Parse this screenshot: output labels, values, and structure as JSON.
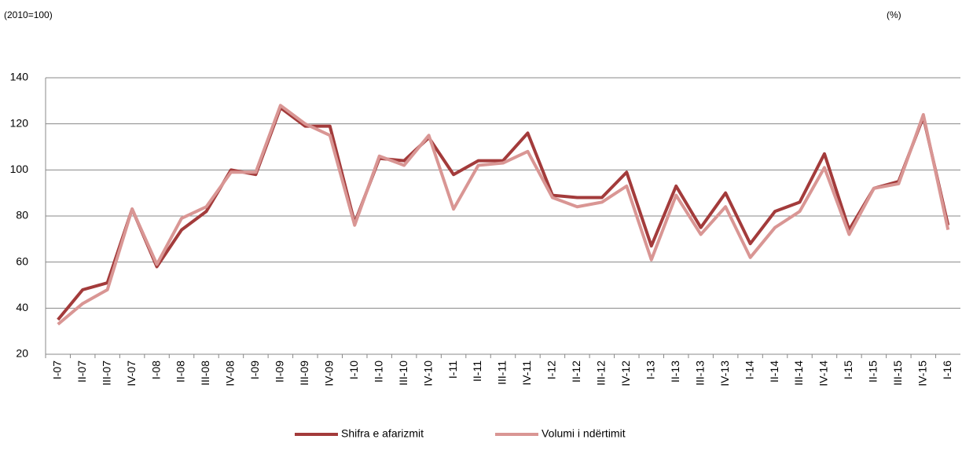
{
  "chart_data": {
    "type": "line",
    "left_label": "(2010=100)",
    "right_label": "(%)",
    "categories": [
      "I-07",
      "II-07",
      "III-07",
      "IV-07",
      "I-08",
      "II-08",
      "III-08",
      "IV-08",
      "I-09",
      "II-09",
      "III-09",
      "IV-09",
      "I-10",
      "II-10",
      "III-10",
      "IV-10",
      "I-11",
      "II-11",
      "III-11",
      "IV-11",
      "I-12",
      "II-12",
      "III-12",
      "IV-12",
      "I-13",
      "II-13",
      "III-13",
      "IV-13",
      "I-14",
      "II-14",
      "III-14",
      "IV-14",
      "I-15",
      "II-15",
      "III-15",
      "IV-15",
      "I-16"
    ],
    "series": [
      {
        "name": "Shifra e afarizmit",
        "color": "#a33b3b",
        "values": [
          35,
          48,
          51,
          83,
          58,
          74,
          82,
          100,
          98,
          127,
          119,
          119,
          77,
          105,
          104,
          114,
          98,
          104,
          104,
          116,
          89,
          88,
          88,
          99,
          67,
          93,
          75,
          90,
          68,
          82,
          86,
          107,
          74,
          92,
          95,
          123,
          76
        ]
      },
      {
        "name": "Volumi i ndërtimit",
        "color": "#d99694",
        "values": [
          33,
          42,
          48,
          83,
          59,
          79,
          84,
          99,
          99,
          128,
          120,
          115,
          76,
          106,
          102,
          115,
          83,
          102,
          103,
          108,
          88,
          84,
          86,
          93,
          61,
          89,
          72,
          84,
          62,
          75,
          82,
          101,
          72,
          92,
          94,
          124,
          74
        ]
      }
    ],
    "ylim": [
      20,
      140
    ],
    "yticks": [
      20,
      40,
      60,
      80,
      100,
      120,
      140
    ],
    "grid": true,
    "legend": "bottom"
  }
}
